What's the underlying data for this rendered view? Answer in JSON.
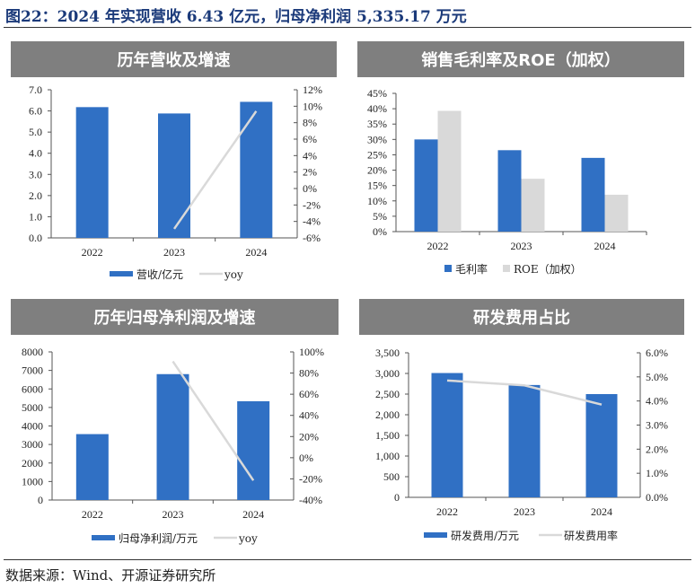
{
  "page_title": "图22：2024 年实现营收 6.43 亿元，归母净利润 5,335.17 万元",
  "source": "数据来源：Wind、开源证券研究所",
  "colors": {
    "bar_blue": "#3070c4",
    "bar_gray": "#d9d9d9",
    "line_gray": "#d9d9d9",
    "header_gray": "#7f7f7f"
  },
  "chart_data": [
    {
      "type": "bar",
      "title": "历年营收及增速",
      "categories": [
        "2022",
        "2023",
        "2024"
      ],
      "series": [
        {
          "name": "营收/亿元",
          "type": "bar",
          "axis": "left",
          "values": [
            6.18,
            5.88,
            6.43
          ]
        },
        {
          "name": "yoy",
          "type": "line",
          "axis": "right",
          "values": [
            null,
            -4.9,
            9.4
          ]
        }
      ],
      "ylim": [
        0,
        7
      ],
      "y_ticks": [
        "0.0",
        "1.0",
        "2.0",
        "3.0",
        "4.0",
        "5.0",
        "6.0",
        "7.0"
      ],
      "y2lim": [
        -6,
        12
      ],
      "y2_ticks": [
        "-6%",
        "-4%",
        "-2%",
        "0%",
        "2%",
        "4%",
        "6%",
        "8%",
        "10%",
        "12%"
      ],
      "legend": "bottom"
    },
    {
      "type": "bar",
      "title": "销售毛利率及ROE（加权）",
      "categories": [
        "2022",
        "2023",
        "2024"
      ],
      "series": [
        {
          "name": "毛利率",
          "type": "bar",
          "axis": "left",
          "values": [
            30.0,
            26.5,
            24.0
          ]
        },
        {
          "name": "ROE（加权）",
          "type": "bar",
          "axis": "left",
          "values": [
            39.3,
            17.2,
            12.0
          ]
        }
      ],
      "ylim": [
        0,
        45
      ],
      "y_ticks": [
        "0%",
        "5%",
        "10%",
        "15%",
        "20%",
        "25%",
        "30%",
        "35%",
        "40%",
        "45%"
      ],
      "legend": "bottom"
    },
    {
      "type": "bar",
      "title": "历年归母净利润及增速",
      "categories": [
        "2022",
        "2023",
        "2024"
      ],
      "series": [
        {
          "name": "归母净利润/万元",
          "type": "bar",
          "axis": "left",
          "values": [
            3560,
            6800,
            5335.17
          ]
        },
        {
          "name": "yoy",
          "type": "line",
          "axis": "right",
          "values": [
            null,
            91,
            -21.5
          ]
        }
      ],
      "ylim": [
        0,
        8000
      ],
      "y_ticks": [
        "0",
        "1000",
        "2000",
        "3000",
        "4000",
        "5000",
        "6000",
        "7000",
        "8000"
      ],
      "y2lim": [
        -40,
        100
      ],
      "y2_ticks": [
        "-40%",
        "-20%",
        "0%",
        "20%",
        "40%",
        "60%",
        "80%",
        "100%"
      ],
      "legend": "bottom"
    },
    {
      "type": "bar",
      "title": "研发费用占比",
      "categories": [
        "2022",
        "2023",
        "2024"
      ],
      "series": [
        {
          "name": "研发费用/万元",
          "type": "bar",
          "axis": "left",
          "values": [
            3010,
            2720,
            2500
          ]
        },
        {
          "name": "研发费用率",
          "type": "line",
          "axis": "right",
          "values": [
            4.85,
            4.65,
            3.85
          ]
        }
      ],
      "ylim": [
        0,
        3500
      ],
      "y_ticks": [
        "0",
        "500",
        "1,000",
        "1,500",
        "2,000",
        "2,500",
        "3,000",
        "3,500"
      ],
      "y2lim": [
        0,
        6
      ],
      "y2_ticks": [
        "0.0%",
        "1.0%",
        "2.0%",
        "3.0%",
        "4.0%",
        "5.0%",
        "6.0%"
      ],
      "legend": "bottom"
    }
  ]
}
